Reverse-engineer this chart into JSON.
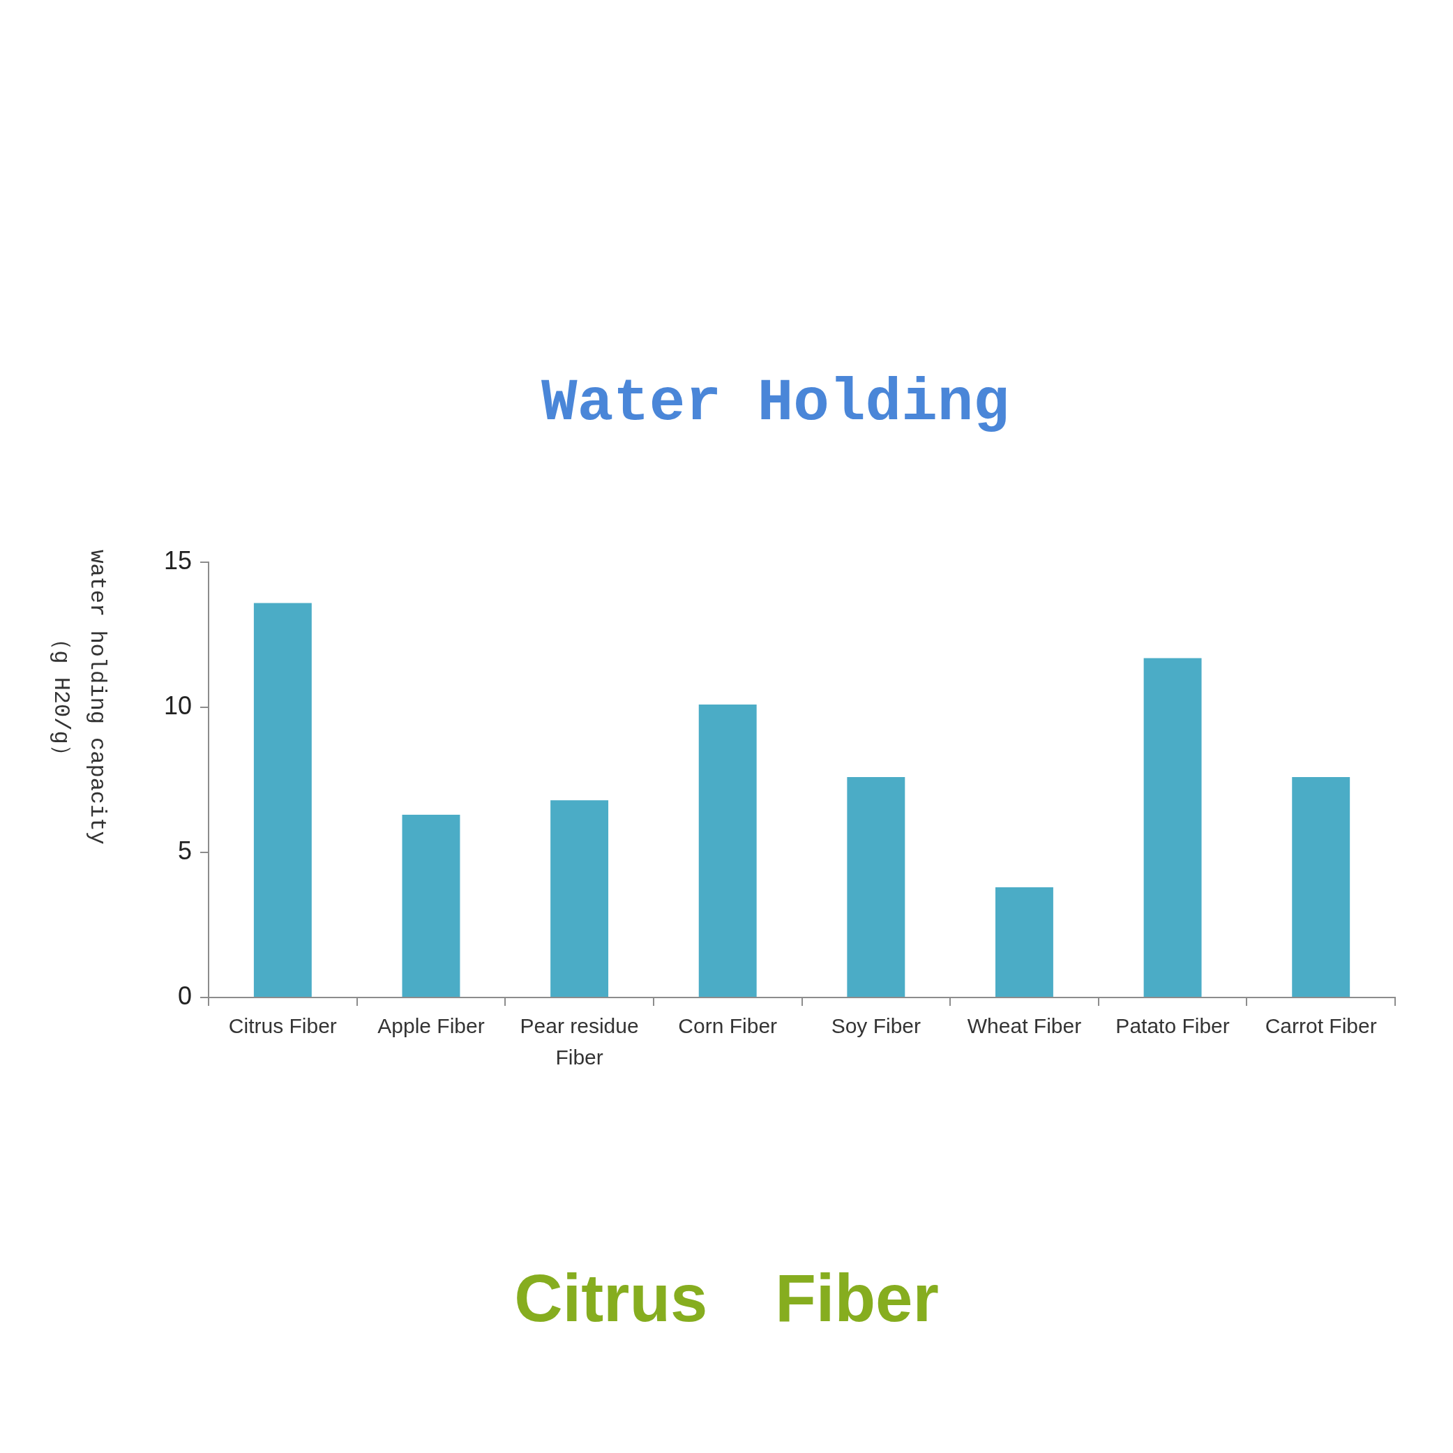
{
  "chart_data": {
    "type": "bar",
    "title": "Water Holding",
    "ylabel": "water holding capacity\n（g H20/g）",
    "categories": [
      "Citrus Fiber",
      "Apple Fiber",
      "Pear residue Fiber",
      "Corn Fiber",
      "Soy Fiber",
      "Wheat Fiber",
      "Patato Fiber",
      "Carrot Fiber"
    ],
    "values": [
      13.6,
      6.3,
      6.8,
      10.1,
      7.6,
      3.8,
      11.7,
      7.6
    ],
    "color": "#4bacc6",
    "ylim": [
      0,
      15
    ],
    "yticks": [
      0,
      5,
      10,
      15
    ],
    "annotations": [
      "Citrus Fiber"
    ]
  }
}
